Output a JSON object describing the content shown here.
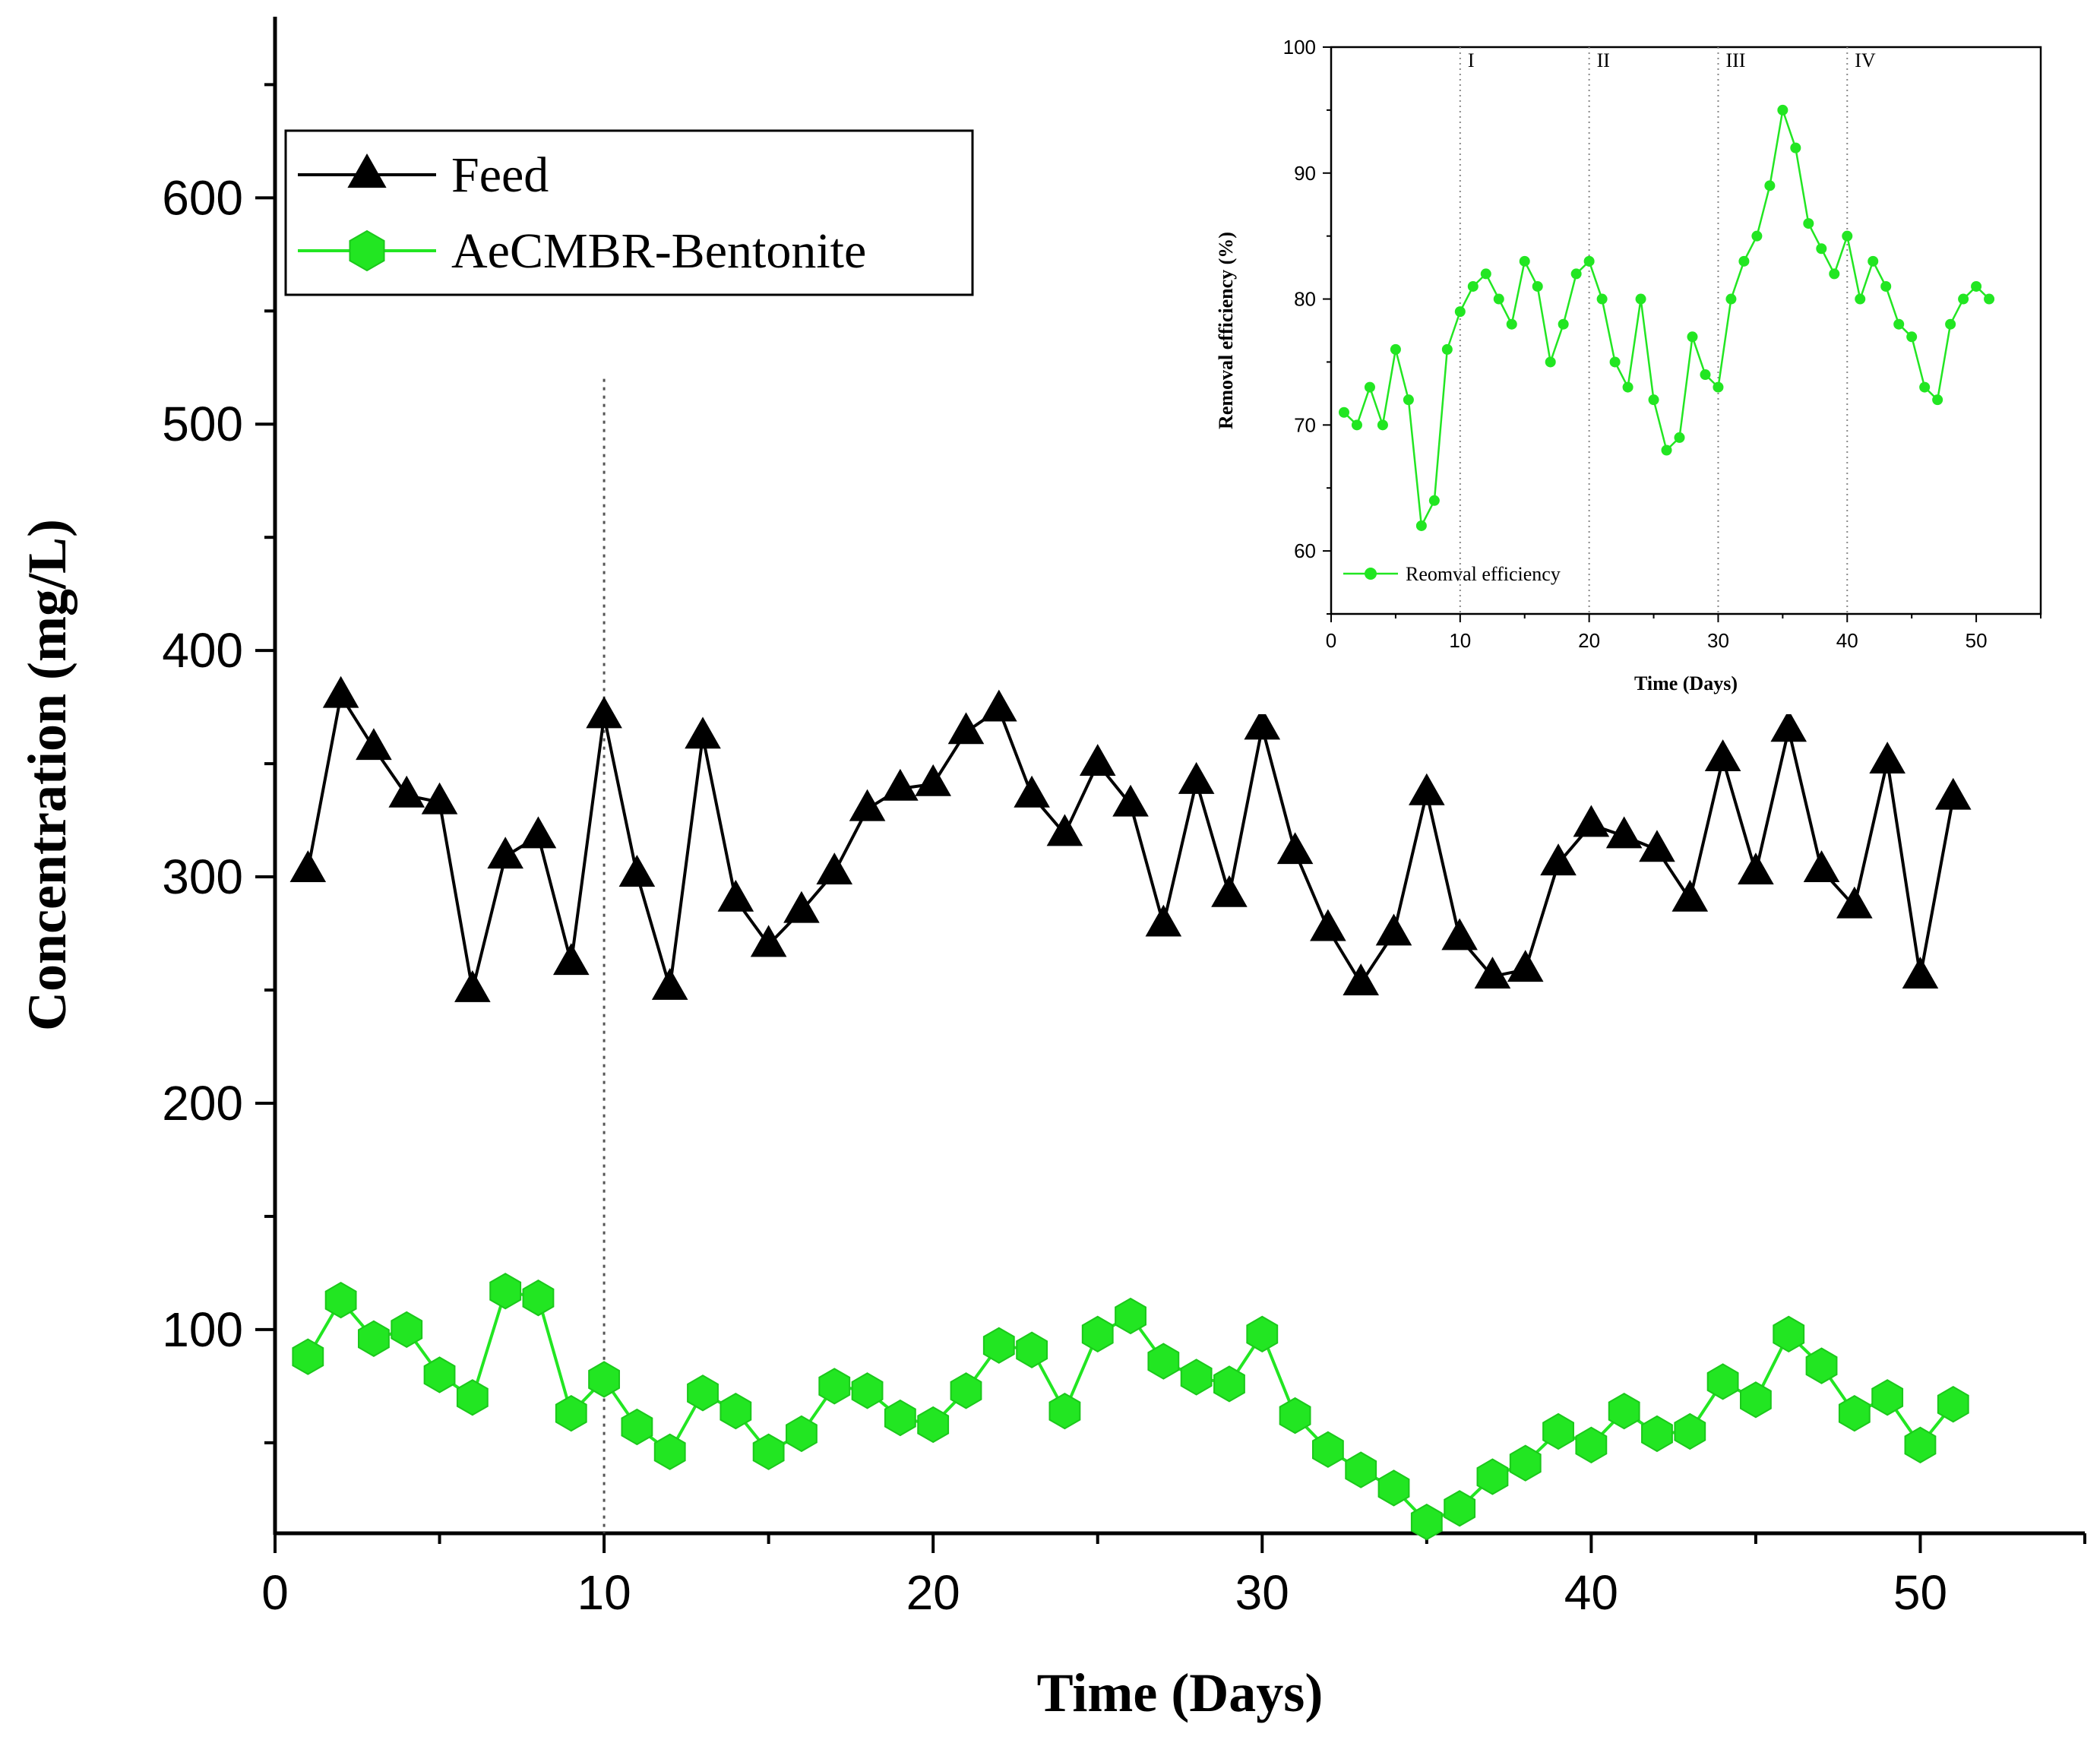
{
  "chart_data": [
    {
      "id": "main",
      "type": "line",
      "title": "",
      "xlabel": "Time (Days)",
      "ylabel": "Concentration (mg/L)",
      "xlim": [
        0,
        55
      ],
      "ylim": [
        10,
        680
      ],
      "xticks": [
        0,
        10,
        20,
        30,
        40,
        50
      ],
      "yticks": [
        100,
        200,
        300,
        400,
        500,
        600
      ],
      "grid": false,
      "legend_position": "top-left",
      "vlines": [
        10
      ],
      "x": [
        1,
        2,
        3,
        4,
        5,
        6,
        7,
        8,
        9,
        10,
        11,
        12,
        13,
        14,
        15,
        16,
        17,
        18,
        19,
        20,
        21,
        22,
        23,
        24,
        25,
        26,
        27,
        28,
        29,
        30,
        31,
        32,
        33,
        34,
        35,
        36,
        37,
        38,
        39,
        40,
        41,
        42,
        43,
        44,
        45,
        46,
        47,
        48,
        49,
        50,
        51
      ],
      "series": [
        {
          "name": "Feed",
          "color": "#000000",
          "marker": "triangle",
          "values": [
            303,
            380,
            357,
            336,
            333,
            250,
            309,
            318,
            262,
            371,
            301,
            251,
            362,
            290,
            270,
            285,
            302,
            330,
            339,
            341,
            364,
            374,
            336,
            319,
            350,
            332,
            279,
            342,
            292,
            366,
            311,
            277,
            253,
            275,
            337,
            273,
            256,
            259,
            306,
            323,
            318,
            312,
            290,
            352,
            302,
            365,
            303,
            287,
            351,
            256,
            335
          ]
        },
        {
          "name": "AeCMBR-Bentonite",
          "color": "#22e622",
          "marker": "hexagon",
          "values": [
            88,
            113,
            96,
            100,
            80,
            70,
            117,
            114,
            63,
            78,
            57,
            46,
            72,
            64,
            46,
            54,
            75,
            73,
            61,
            58,
            73,
            93,
            91,
            64,
            98,
            106,
            86,
            79,
            76,
            98,
            62,
            47,
            38,
            30,
            15,
            21,
            35,
            41,
            55,
            49,
            64,
            54,
            55,
            77,
            69,
            98,
            84,
            63,
            70,
            49,
            67
          ]
        }
      ]
    },
    {
      "id": "inset",
      "type": "line",
      "title": "",
      "xlabel": "Time (Days)",
      "ylabel": "Removal efficiency (%)",
      "xlim": [
        0,
        55
      ],
      "ylim": [
        55,
        100
      ],
      "xticks": [
        0,
        10,
        20,
        30,
        40,
        50
      ],
      "yticks": [
        60,
        70,
        80,
        90,
        100
      ],
      "grid": false,
      "legend_position": "bottom-left",
      "vlines": [
        10,
        20,
        30,
        40
      ],
      "phase_labels": [
        "I",
        "II",
        "III",
        "IV"
      ],
      "x": [
        1,
        2,
        3,
        4,
        5,
        6,
        7,
        8,
        9,
        10,
        11,
        12,
        13,
        14,
        15,
        16,
        17,
        18,
        19,
        20,
        21,
        22,
        23,
        24,
        25,
        26,
        27,
        28,
        29,
        30,
        31,
        32,
        33,
        34,
        35,
        36,
        37,
        38,
        39,
        40,
        41,
        42,
        43,
        44,
        45,
        46,
        47,
        48,
        49,
        50,
        51
      ],
      "series": [
        {
          "name": "Reomval efficiency",
          "color": "#22e622",
          "marker": "circle",
          "values": [
            71,
            70,
            73,
            70,
            76,
            72,
            62,
            64,
            76,
            79,
            81,
            82,
            80,
            78,
            83,
            81,
            75,
            78,
            82,
            83,
            80,
            75,
            73,
            80,
            72,
            68,
            69,
            77,
            74,
            73,
            80,
            83,
            85,
            89,
            95,
            92,
            86,
            84,
            82,
            85,
            80,
            83,
            81,
            78,
            77,
            73,
            72,
            78,
            80,
            81,
            80
          ]
        }
      ]
    }
  ]
}
